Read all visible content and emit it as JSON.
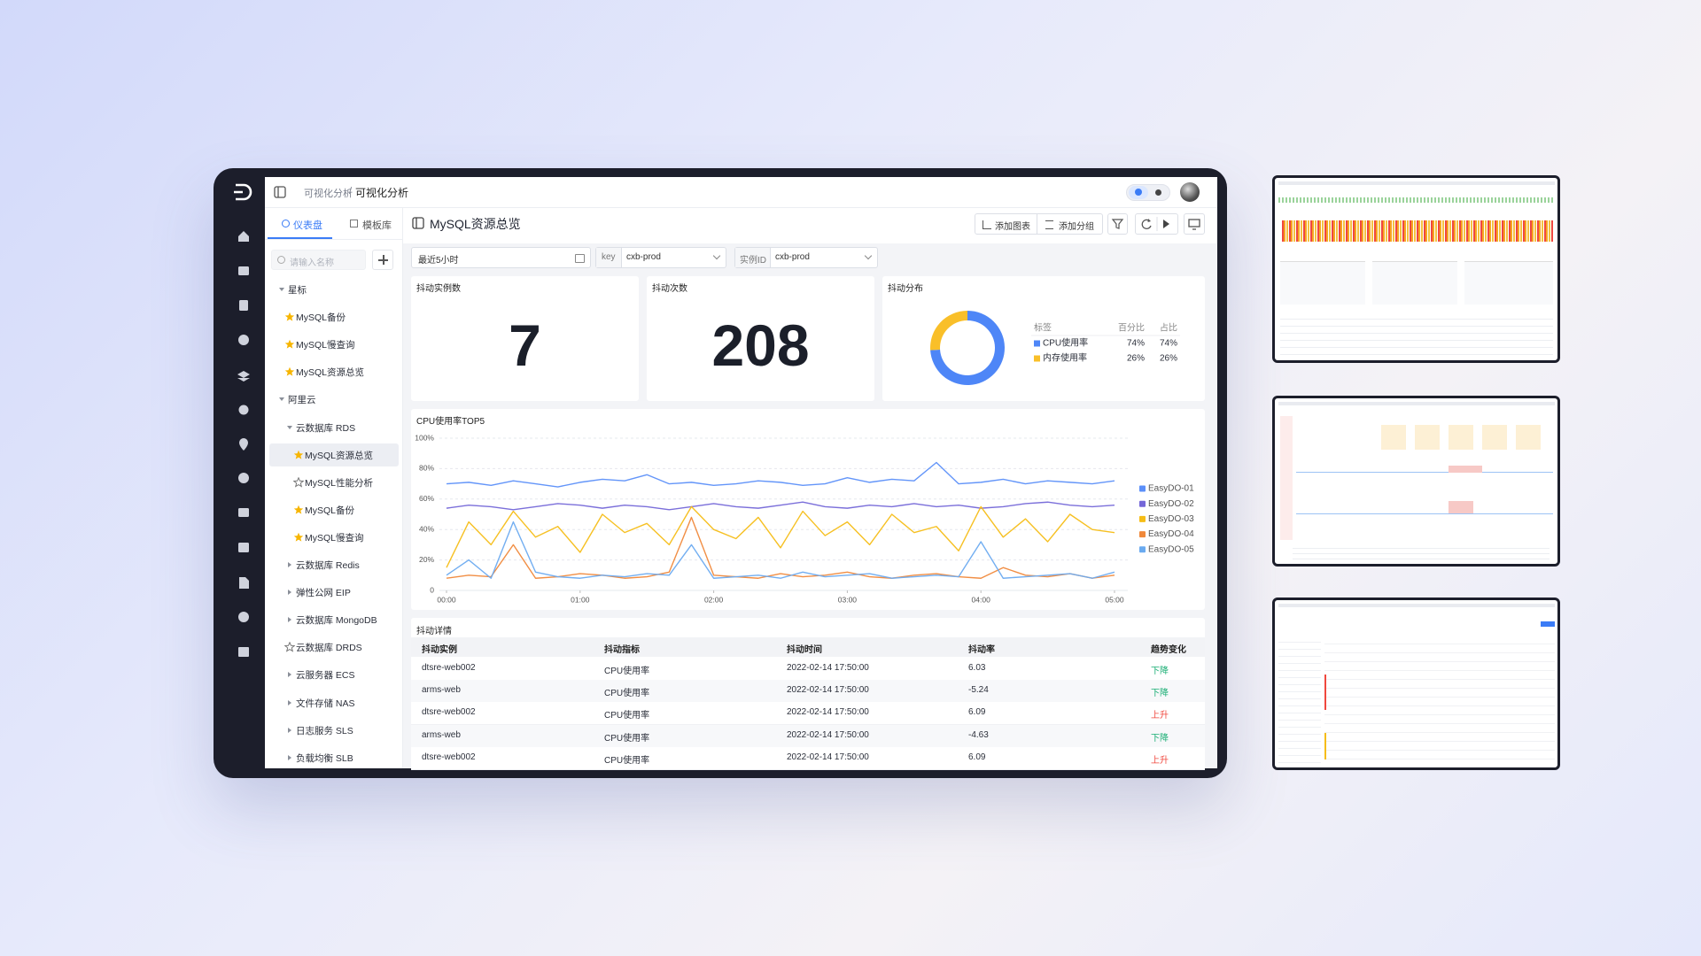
{
  "breadcrumb": {
    "parent": "可视化分析",
    "separator": "/",
    "current": "可视化分析"
  },
  "sidebar_tabs": [
    "仪表盘",
    "模板库"
  ],
  "search_placeholder": "请输入名称",
  "tree": [
    {
      "label": "星标",
      "level": 0,
      "expanded": true
    },
    {
      "label": "MySQL备份",
      "level": 1,
      "icon": "star"
    },
    {
      "label": "MySQL慢查询",
      "level": 1,
      "icon": "star"
    },
    {
      "label": "MySQL资源总览",
      "level": 1,
      "icon": "star"
    },
    {
      "label": "阿里云",
      "level": 0,
      "expanded": true
    },
    {
      "label": "云数据库 RDS",
      "level": 1,
      "expanded": true
    },
    {
      "label": "MySQL资源总览",
      "level": 2,
      "icon": "star",
      "selected": true
    },
    {
      "label": "MySQL性能分析",
      "level": 2,
      "icon": "star-outline"
    },
    {
      "label": "MySQL备份",
      "level": 2,
      "icon": "star"
    },
    {
      "label": "MySQL慢查询",
      "level": 2,
      "icon": "star"
    },
    {
      "label": "云数据库 Redis",
      "level": 1,
      "expanded": false
    },
    {
      "label": "弹性公网 EIP",
      "level": 1,
      "expanded": false
    },
    {
      "label": "云数据库 MongoDB",
      "level": 1,
      "expanded": false
    },
    {
      "label": "云数据库 DRDS",
      "level": 1,
      "icon": "star-outline"
    },
    {
      "label": "云服务器 ECS",
      "level": 1,
      "expanded": false
    },
    {
      "label": "文件存储 NAS",
      "level": 1,
      "expanded": false
    },
    {
      "label": "日志服务 SLS",
      "level": 1,
      "expanded": false
    },
    {
      "label": "负载均衡 SLB",
      "level": 1,
      "expanded": false
    }
  ],
  "dashboard": {
    "title": "MySQL资源总览",
    "buttons": [
      "添加图表",
      "添加分组"
    ],
    "filters": {
      "time_range": "最近5小时",
      "key_label": "key",
      "key_value": "cxb-prod",
      "instance_label": "实例ID",
      "instance_value": "cxb-prod"
    }
  },
  "stats": [
    {
      "title": "抖动实例数",
      "value": 7
    },
    {
      "title": "抖动次数",
      "value": 208
    }
  ],
  "chart_data": [
    {
      "type": "pie",
      "title": "抖动分布",
      "categories": [
        "CPU使用率",
        "内存使用率"
      ],
      "values": [
        74,
        26
      ],
      "value_labels": [
        "74%",
        "26%"
      ],
      "colors": [
        "#4e86f7",
        "#f9bf29"
      ],
      "legend_headers": [
        "标签",
        "百分比",
        "占比"
      ]
    },
    {
      "type": "line",
      "title": "CPU使用率TOP5",
      "x": [
        0,
        10,
        20,
        30,
        40,
        50,
        60,
        70,
        80,
        90,
        100,
        110,
        120,
        130,
        140,
        150,
        160,
        170,
        180,
        190,
        200,
        210,
        220,
        230,
        240,
        250,
        260,
        270,
        280,
        290,
        300
      ],
      "xlim": [
        0,
        300
      ],
      "xticks": [
        {
          "value": 0,
          "label": "00:00"
        },
        {
          "value": 60,
          "label": "01:00"
        },
        {
          "value": 120,
          "label": "02:00"
        },
        {
          "value": 180,
          "label": "03:00"
        },
        {
          "value": 240,
          "label": "04:00"
        },
        {
          "value": 300,
          "label": "05:00"
        }
      ],
      "ylim": [
        0,
        100
      ],
      "yticks": [
        0,
        {
          "value": 20,
          "label": "20%"
        },
        {
          "value": 40,
          "label": "40%"
        },
        {
          "value": 60,
          "label": "60%"
        },
        {
          "value": 80,
          "label": "80%"
        },
        {
          "value": 100,
          "label": "100%"
        }
      ],
      "grid": true,
      "legend": "right",
      "series": [
        {
          "name": "EasyDO-01",
          "color": "#5b8ff9",
          "values": [
            70,
            71,
            69,
            72,
            70,
            68,
            71,
            73,
            72,
            76,
            70,
            71,
            69,
            70,
            72,
            71,
            69,
            70,
            74,
            71,
            73,
            72,
            84,
            70,
            71,
            73,
            70,
            72,
            71,
            70,
            72
          ]
        },
        {
          "name": "EasyDO-02",
          "color": "#7467d8",
          "values": [
            54,
            56,
            55,
            53,
            55,
            57,
            56,
            54,
            56,
            55,
            53,
            55,
            57,
            55,
            54,
            56,
            58,
            55,
            54,
            56,
            55,
            57,
            55,
            56,
            54,
            55,
            57,
            58,
            56,
            55,
            56
          ]
        },
        {
          "name": "EasyDO-03",
          "color": "#f6bd16",
          "values": [
            15,
            45,
            30,
            52,
            35,
            42,
            25,
            50,
            38,
            44,
            30,
            55,
            40,
            34,
            48,
            28,
            52,
            36,
            45,
            30,
            50,
            38,
            42,
            26,
            55,
            35,
            47,
            32,
            50,
            40,
            38
          ]
        },
        {
          "name": "EasyDO-04",
          "color": "#f0883a",
          "values": [
            8,
            10,
            9,
            30,
            8,
            9,
            11,
            10,
            8,
            9,
            12,
            48,
            10,
            9,
            8,
            11,
            9,
            10,
            12,
            9,
            8,
            10,
            11,
            9,
            8,
            15,
            10,
            9,
            11,
            8,
            10
          ]
        },
        {
          "name": "EasyDO-05",
          "color": "#6aaaf0",
          "values": [
            10,
            20,
            8,
            45,
            12,
            9,
            8,
            10,
            9,
            11,
            10,
            30,
            8,
            9,
            10,
            8,
            12,
            9,
            10,
            11,
            8,
            9,
            10,
            9,
            32,
            8,
            9,
            10,
            11,
            8,
            12
          ]
        }
      ]
    }
  ],
  "table": {
    "title": "抖动详情",
    "columns": [
      "抖动实例",
      "抖动指标",
      "抖动时间",
      "抖动率",
      "趋势变化"
    ],
    "rows": [
      [
        "dtsre-web002",
        "CPU使用率",
        "2022-02-14 17:50:00",
        6.03,
        "下降"
      ],
      [
        "arms-web",
        "CPU使用率",
        "2022-02-14 17:50:00",
        -5.24,
        "下降"
      ],
      [
        "dtsre-web002",
        "CPU使用率",
        "2022-02-14 17:50:00",
        6.09,
        "上升"
      ],
      [
        "arms-web",
        "CPU使用率",
        "2022-02-14 17:50:00",
        -4.63,
        "下降"
      ],
      [
        "dtsre-web002",
        "CPU使用率",
        "2022-02-14 17:50:00",
        6.09,
        "上升"
      ]
    ],
    "trend_colors": [
      "#1aae74",
      "#1aae74",
      "#f0483e",
      "#1aae74",
      "#f0483e"
    ]
  }
}
